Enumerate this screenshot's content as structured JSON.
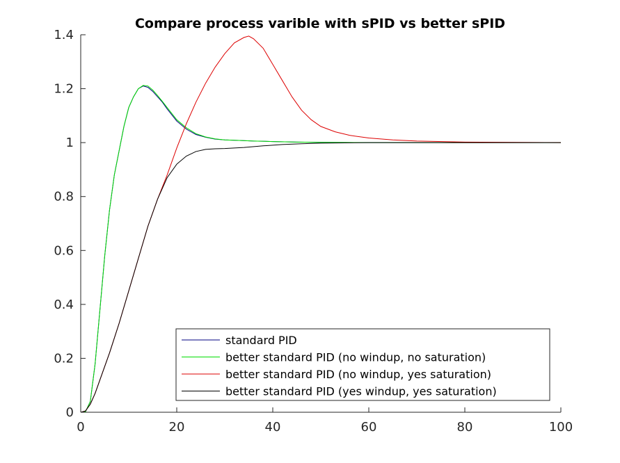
{
  "chart_data": {
    "type": "line",
    "title": "Compare process varible with sPID vs better sPID",
    "xlabel": "",
    "ylabel": "",
    "xlim": [
      0,
      100
    ],
    "ylim": [
      0,
      1.4
    ],
    "xticks": [
      0,
      20,
      40,
      60,
      80,
      100
    ],
    "xtick_labels": [
      "0",
      "20",
      "40",
      "60",
      "80",
      "100"
    ],
    "yticks": [
      0,
      0.2,
      0.4,
      0.6,
      0.8,
      1.0,
      1.2,
      1.4
    ],
    "ytick_labels": [
      "0",
      "0.2",
      "0.4",
      "0.6",
      "0.8",
      "1",
      "1.2",
      "1.4"
    ],
    "grid": false,
    "legend_position": "bottom-right",
    "series": [
      {
        "name": "standard PID",
        "color": "#000080",
        "x": [
          0,
          1,
          2,
          3,
          4,
          5,
          6,
          7,
          8,
          9,
          10,
          11,
          12,
          13,
          14,
          15,
          16,
          17,
          18,
          20,
          22,
          24,
          26,
          28,
          30,
          33,
          36,
          40,
          45,
          50,
          60,
          70,
          80,
          90,
          100
        ],
        "y": [
          0,
          0.002,
          0.04,
          0.18,
          0.38,
          0.58,
          0.75,
          0.88,
          0.97,
          1.06,
          1.13,
          1.17,
          1.2,
          1.21,
          1.205,
          1.19,
          1.17,
          1.15,
          1.125,
          1.08,
          1.05,
          1.03,
          1.02,
          1.013,
          1.01,
          1.008,
          1.006,
          1.004,
          1.002,
          1.001,
          1.0,
          1.0,
          1.0,
          1.0,
          1.0
        ]
      },
      {
        "name": "better standard PID (no windup, no saturation)",
        "color": "#00dd00",
        "x": [
          0,
          1,
          2,
          3,
          4,
          5,
          6,
          7,
          8,
          9,
          10,
          11,
          12,
          13,
          14,
          15,
          16,
          17,
          18,
          20,
          22,
          24,
          26,
          28,
          30,
          33,
          36,
          40,
          45,
          50,
          60,
          70,
          80,
          90,
          100
        ],
        "y": [
          0,
          0.002,
          0.04,
          0.18,
          0.38,
          0.58,
          0.75,
          0.88,
          0.97,
          1.06,
          1.13,
          1.17,
          1.2,
          1.212,
          1.21,
          1.195,
          1.175,
          1.153,
          1.13,
          1.085,
          1.055,
          1.033,
          1.021,
          1.014,
          1.01,
          1.008,
          1.006,
          1.004,
          1.002,
          1.001,
          1.0,
          1.0,
          1.0,
          1.0,
          1.0
        ]
      },
      {
        "name": "better standard PID (no windup, yes saturation)",
        "color": "#dd0000",
        "x": [
          0,
          1,
          2,
          3,
          4,
          5,
          6,
          8,
          10,
          12,
          14,
          16,
          18,
          20,
          22,
          24,
          26,
          28,
          30,
          32,
          34,
          35,
          36,
          38,
          40,
          42,
          44,
          46,
          48,
          50,
          53,
          56,
          60,
          65,
          70,
          80,
          90,
          100
        ],
        "y": [
          0,
          0.005,
          0.03,
          0.07,
          0.12,
          0.17,
          0.22,
          0.33,
          0.45,
          0.57,
          0.69,
          0.79,
          0.88,
          0.98,
          1.07,
          1.15,
          1.22,
          1.28,
          1.33,
          1.37,
          1.39,
          1.395,
          1.385,
          1.35,
          1.29,
          1.23,
          1.17,
          1.12,
          1.085,
          1.06,
          1.04,
          1.027,
          1.017,
          1.01,
          1.006,
          1.002,
          1.001,
          1.0
        ]
      },
      {
        "name": "better standard PID (yes windup, yes saturation)",
        "color": "#000000",
        "x": [
          0,
          1,
          2,
          3,
          4,
          5,
          6,
          8,
          10,
          12,
          14,
          16,
          18,
          20,
          22,
          24,
          26,
          28,
          30,
          34,
          38,
          42,
          46,
          50,
          55,
          60,
          70,
          80,
          90,
          100
        ],
        "y": [
          0,
          0.005,
          0.03,
          0.07,
          0.12,
          0.17,
          0.22,
          0.33,
          0.45,
          0.57,
          0.69,
          0.79,
          0.87,
          0.92,
          0.95,
          0.967,
          0.975,
          0.977,
          0.978,
          0.982,
          0.988,
          0.993,
          0.996,
          0.998,
          0.999,
          1.0,
          1.0,
          1.0,
          1.0,
          1.0
        ]
      }
    ]
  }
}
